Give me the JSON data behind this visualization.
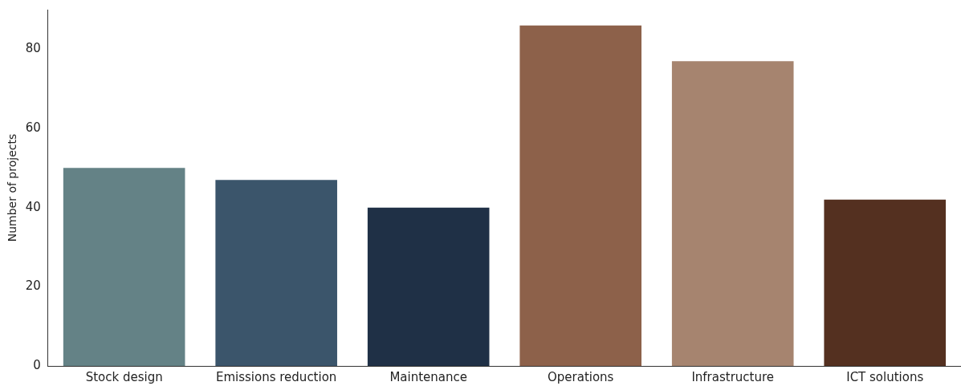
{
  "chart_data": {
    "type": "bar",
    "ylabel": "Number of projects",
    "categories": [
      "Stock design",
      "Emissions reduction",
      "Maintenance",
      "Operations",
      "Infrastructure",
      "ICT solutions"
    ],
    "values": [
      50,
      47,
      40,
      86,
      77,
      42
    ],
    "colors": [
      "#648286",
      "#3b556b",
      "#1f3046",
      "#8d614a",
      "#a6846f",
      "#543020"
    ],
    "ylim": [
      0,
      90
    ],
    "yticks": [
      0,
      20,
      40,
      60,
      80
    ],
    "grid": false,
    "legend": false
  }
}
